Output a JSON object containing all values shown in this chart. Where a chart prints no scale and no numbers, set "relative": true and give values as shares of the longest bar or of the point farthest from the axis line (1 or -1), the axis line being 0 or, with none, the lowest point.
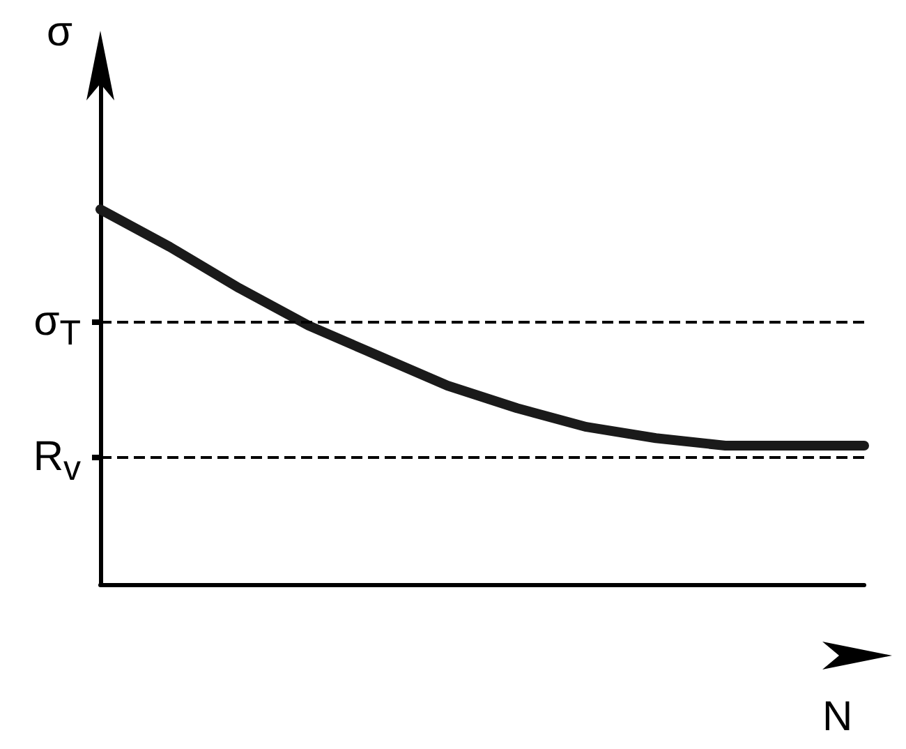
{
  "chart_data": {
    "type": "line",
    "relative": true,
    "xlabel": "N",
    "ylabel": "σ",
    "categories": [
      null,
      null,
      null,
      null,
      null,
      null,
      null,
      null,
      null,
      null,
      null,
      null
    ],
    "series": [
      {
        "color": "#1a1a1a",
        "values": [
          1,
          0.9,
          0.79,
          0.69,
          0.61,
          0.53,
          0.47,
          0.42,
          0.39,
          0.37,
          0.37,
          0.37
        ]
      }
    ],
    "ref_lines": [
      {
        "axis": "y",
        "value": 0.7,
        "label": "σ$_{T}$",
        "color": "#000000",
        "line_style": "dashed"
      },
      {
        "axis": "y",
        "value": 0.34,
        "label": "R$_{v}$",
        "color": "#000000",
        "line_style": "dashed"
      }
    ],
    "line_style": "solid"
  }
}
